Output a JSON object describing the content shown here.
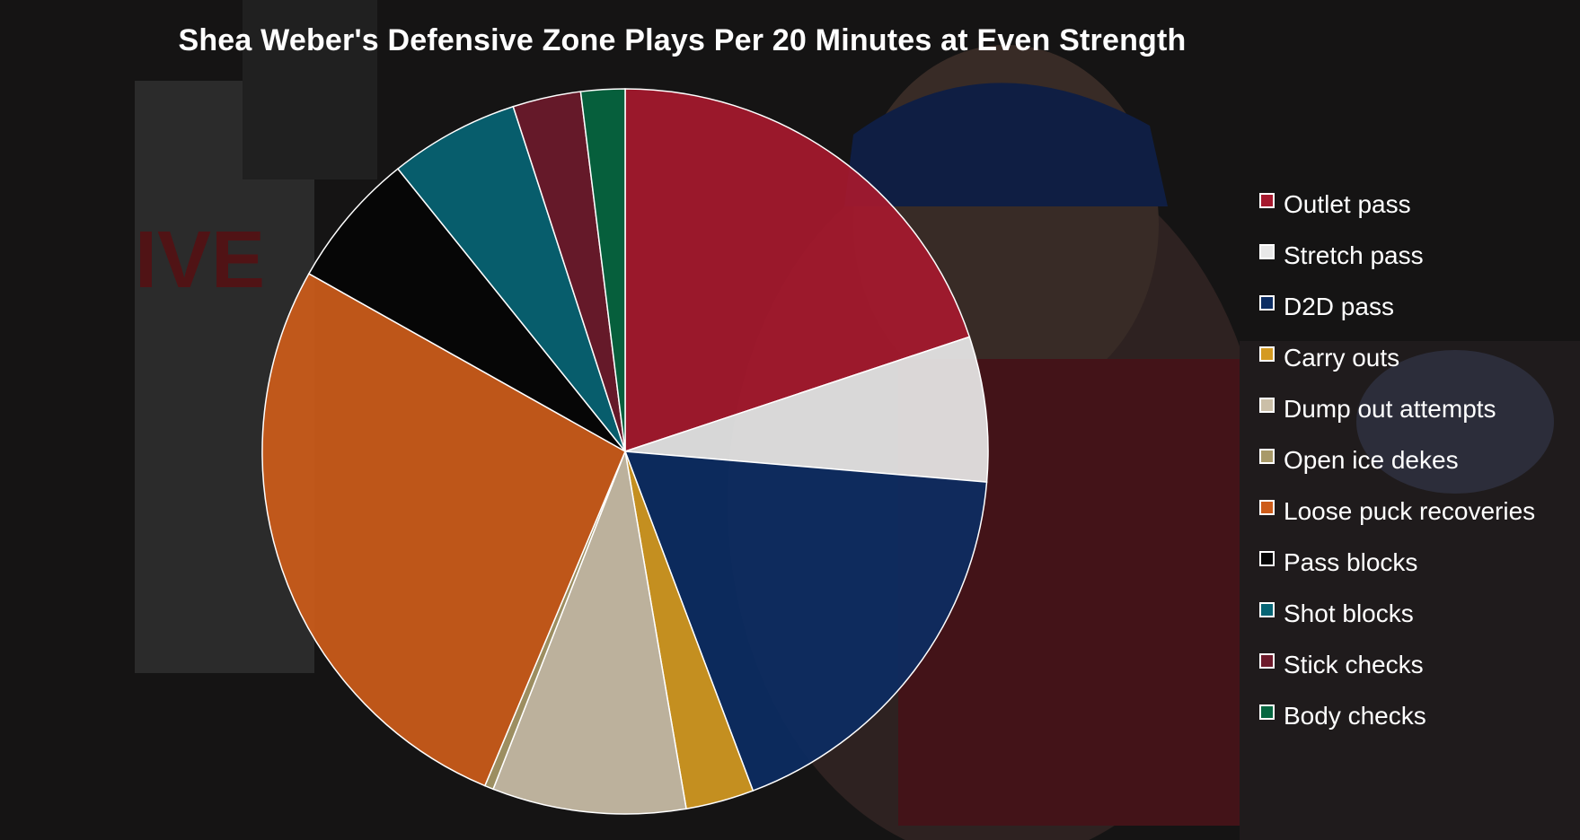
{
  "chart_data": {
    "type": "pie",
    "title": "Shea Weber's Defensive Zone Plays Per 20 Minutes at Even Strength",
    "legend_position": "right",
    "start_angle": "top, clockwise",
    "slices": [
      {
        "label": "Outlet pass",
        "value": 20.3,
        "color": "#a6192e"
      },
      {
        "label": "Stretch pass",
        "value": 6.6,
        "color": "#e8e8e8"
      },
      {
        "label": "D2D pass",
        "value": 18.3,
        "color": "#0c2d63"
      },
      {
        "label": "Carry outs",
        "value": 3.1,
        "color": "#d49a22"
      },
      {
        "label": "Dump out attempts",
        "value": 8.8,
        "color": "#cbbfa8"
      },
      {
        "label": "Open ice dekes",
        "value": 0.4,
        "color": "#a89968"
      },
      {
        "label": "Loose puck recoveries",
        "value": 27.4,
        "color": "#cd5c1a"
      },
      {
        "label": "Pass blocks",
        "value": 6.2,
        "color": "#050505"
      },
      {
        "label": "Shot blocks",
        "value": 5.9,
        "color": "#066474"
      },
      {
        "label": "Stick checks",
        "value": 3.1,
        "color": "#6d1a2b"
      },
      {
        "label": "Body checks",
        "value": 2.0,
        "color": "#056640"
      }
    ]
  }
}
